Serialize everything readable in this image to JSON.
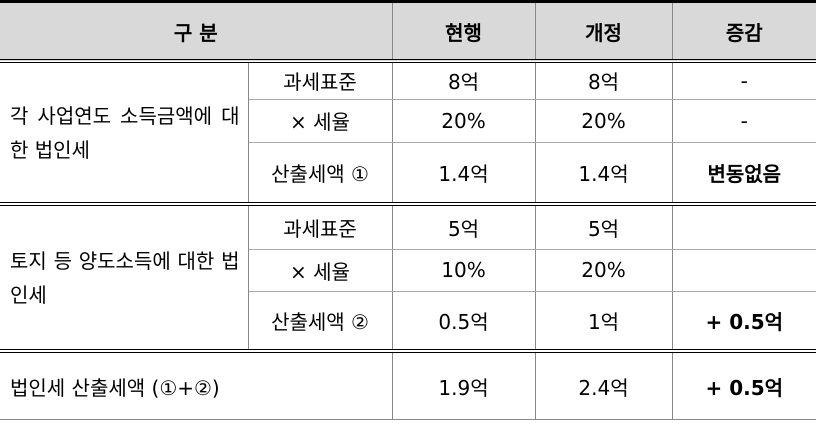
{
  "table": {
    "header": [
      "구 분",
      "현행",
      "개정",
      "증감"
    ],
    "groups": [
      {
        "label": "각 사업연도 소득금액에 대한 법인세",
        "rows": [
          [
            "과세표준",
            "8억",
            "8억",
            "-"
          ],
          [
            "× 세율",
            "20%",
            "20%",
            "-"
          ],
          [
            "산출세액 ①",
            "1.4억",
            "1.4억",
            "변동없음"
          ]
        ]
      },
      {
        "label": "토지 등 양도소득에 대한 법인세",
        "rows": [
          [
            "과세표준",
            "5억",
            "5억"
          ],
          [
            "× 세율",
            "10%",
            "20%"
          ],
          [
            "산출세액 ②",
            "0.5억",
            "1억",
            "+ 0.5억"
          ]
        ]
      }
    ],
    "total": {
      "label": "법인세 산출세액 (①+②)",
      "values": [
        "1.9억",
        "2.4억",
        "+ 0.5억"
      ]
    }
  }
}
